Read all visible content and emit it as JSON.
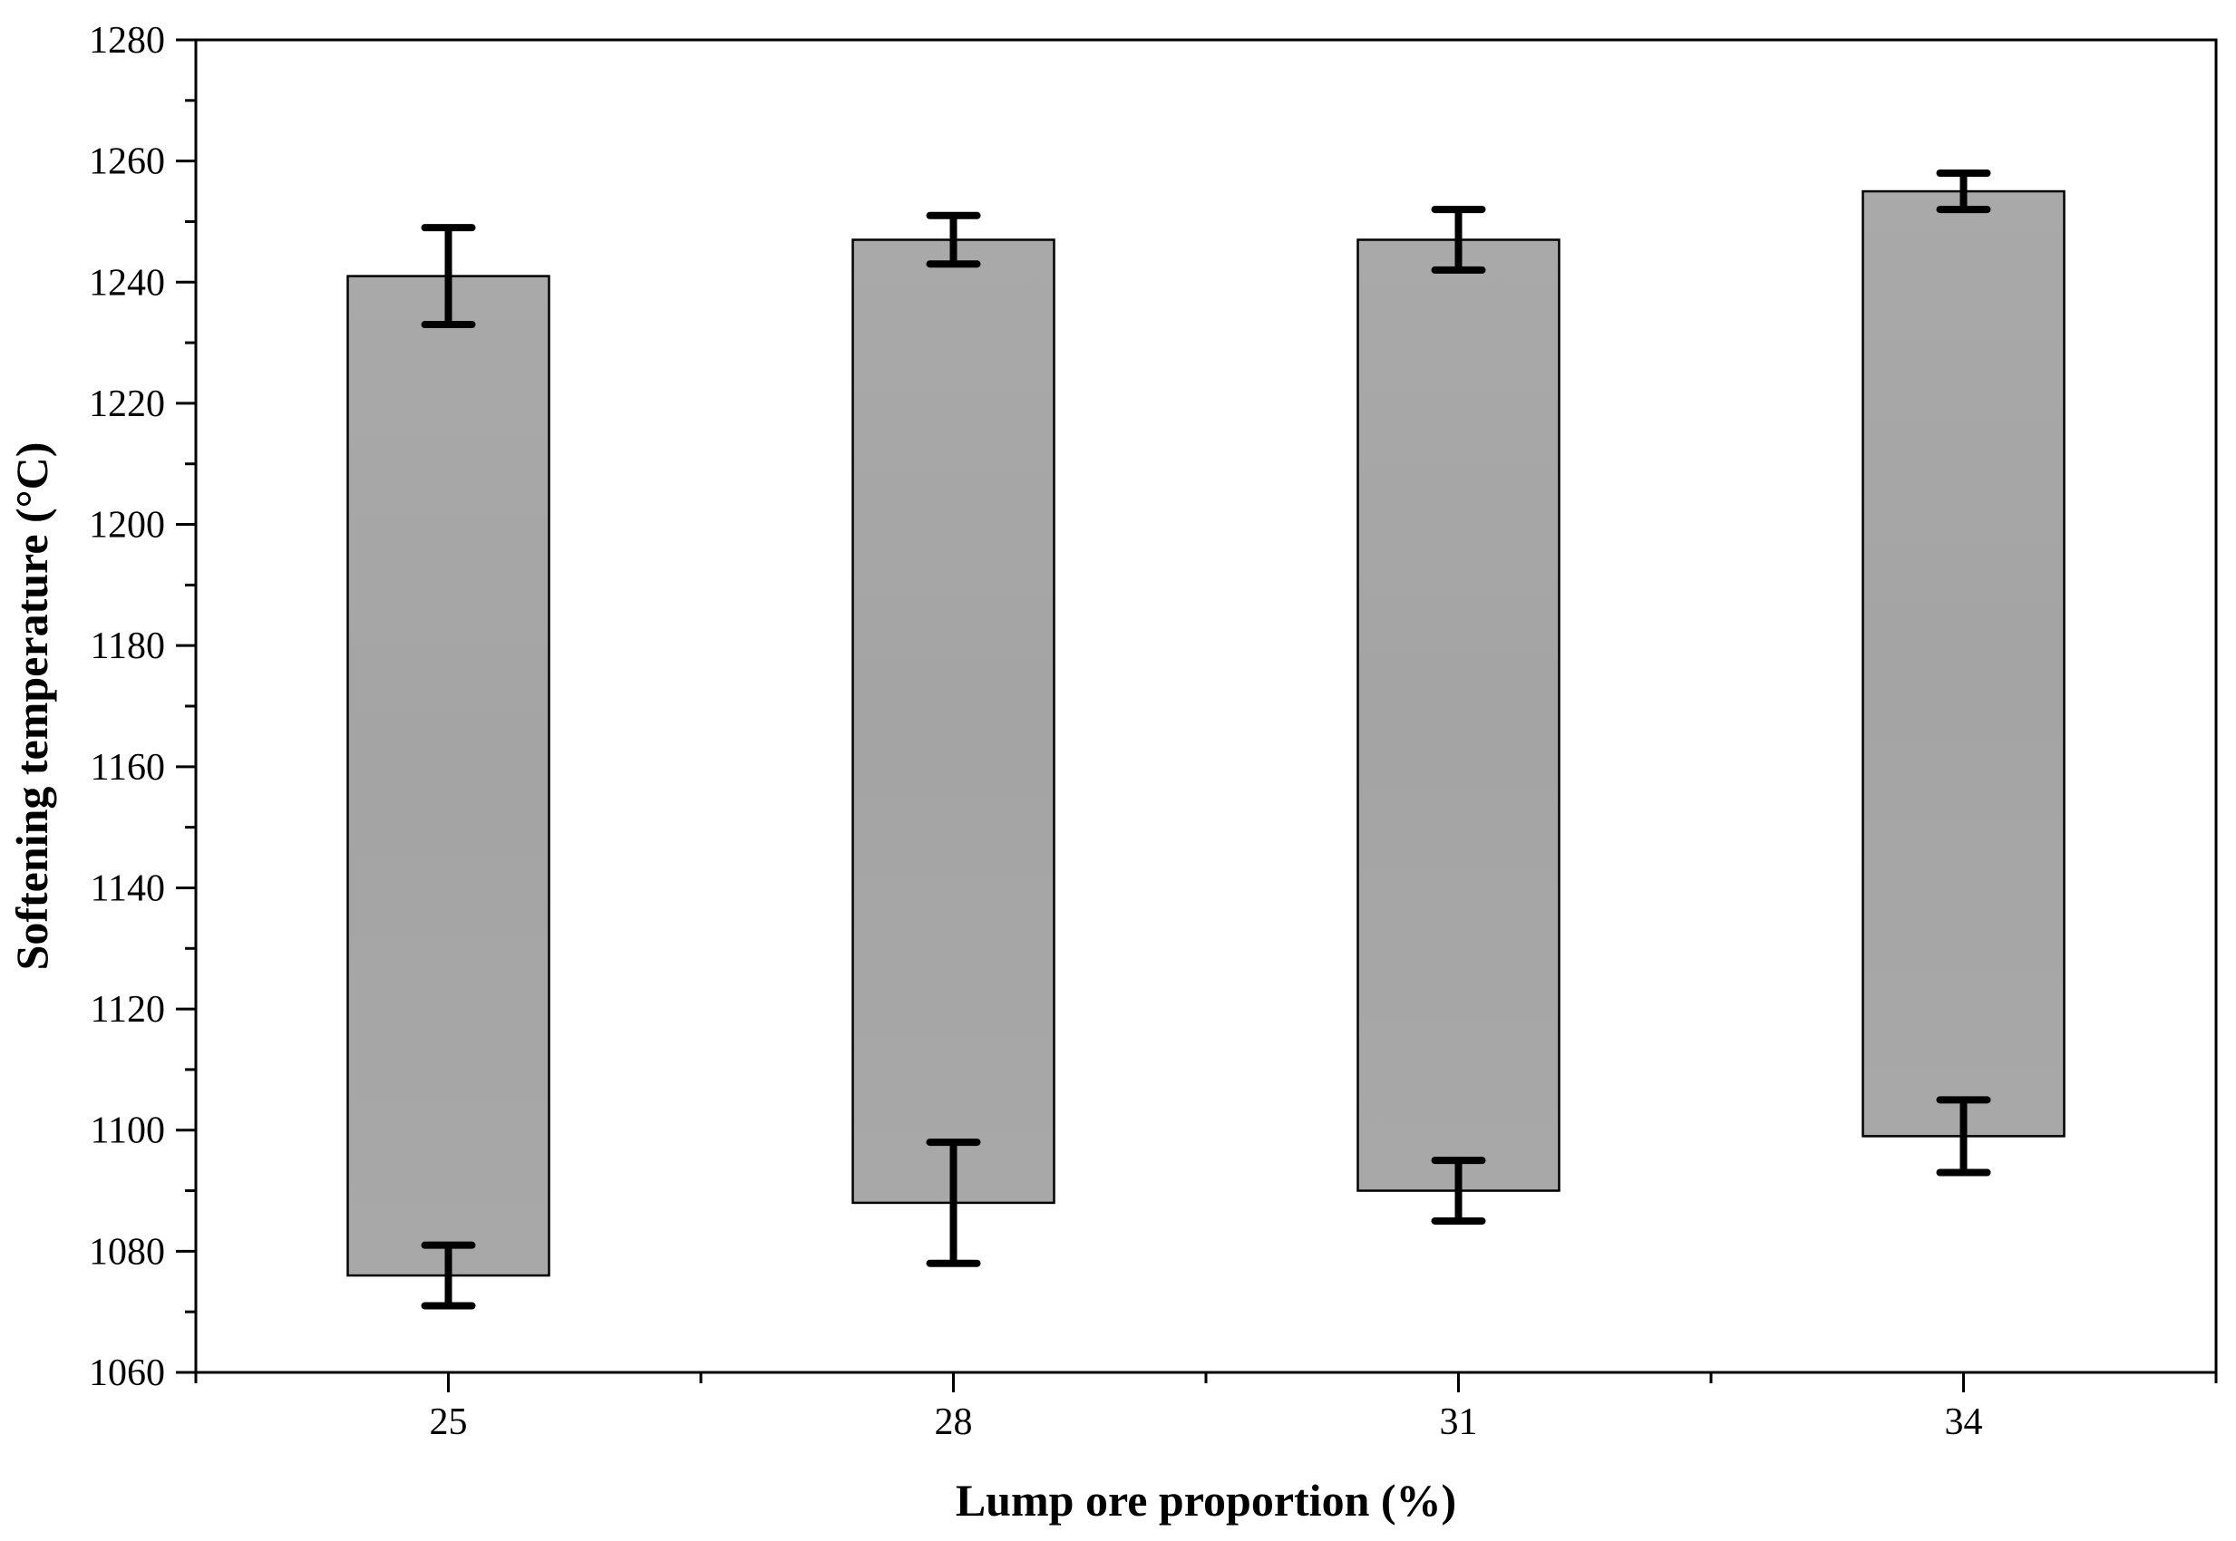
{
  "chart_data": {
    "type": "bar",
    "subtype": "floating-range",
    "title": "",
    "xlabel": "Lump ore proportion (%)",
    "ylabel": "Softening temperature (°C)",
    "categories": [
      "25",
      "28",
      "31",
      "34"
    ],
    "ranges": [
      {
        "category": "25",
        "low": 1076,
        "high": 1241,
        "low_err": [
          1071,
          1081
        ],
        "high_err": [
          1233,
          1249
        ]
      },
      {
        "category": "28",
        "low": 1088,
        "high": 1247,
        "low_err": [
          1078,
          1098
        ],
        "high_err": [
          1243,
          1251
        ]
      },
      {
        "category": "31",
        "low": 1090,
        "high": 1247,
        "low_err": [
          1085,
          1095
        ],
        "high_err": [
          1242,
          1252
        ]
      },
      {
        "category": "34",
        "low": 1099,
        "high": 1255,
        "low_err": [
          1093,
          1105
        ],
        "high_err": [
          1252,
          1258
        ]
      }
    ],
    "ylim": [
      1060,
      1280
    ],
    "yticks": [
      "1060",
      "1080",
      "1100",
      "1120",
      "1140",
      "1160",
      "1180",
      "1200",
      "1220",
      "1240",
      "1260",
      "1280"
    ],
    "grid": false,
    "legend": "none",
    "colors": {
      "bar_fill": "#a6a6a6",
      "bar_edge": "#000000",
      "error_bar": "#000000"
    }
  }
}
